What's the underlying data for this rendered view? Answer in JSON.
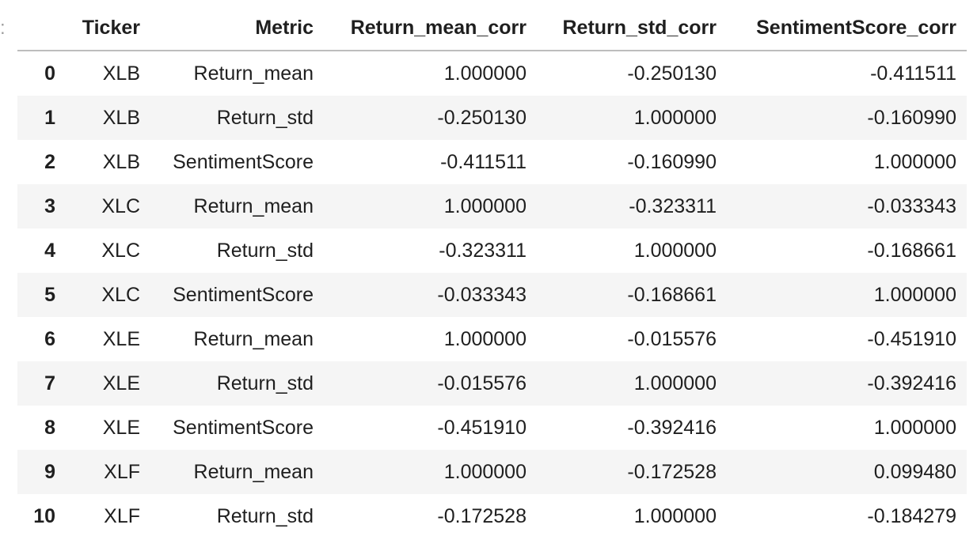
{
  "prompt_marker": ":",
  "columns": [
    "",
    "Ticker",
    "Metric",
    "Return_mean_corr",
    "Return_std_corr",
    "SentimentScore_corr"
  ],
  "rows": [
    {
      "index": "0",
      "ticker": "XLB",
      "metric": "Return_mean",
      "return_mean_corr": "1.000000",
      "return_std_corr": "-0.250130",
      "sentiment_corr": "-0.411511"
    },
    {
      "index": "1",
      "ticker": "XLB",
      "metric": "Return_std",
      "return_mean_corr": "-0.250130",
      "return_std_corr": "1.000000",
      "sentiment_corr": "-0.160990"
    },
    {
      "index": "2",
      "ticker": "XLB",
      "metric": "SentimentScore",
      "return_mean_corr": "-0.411511",
      "return_std_corr": "-0.160990",
      "sentiment_corr": "1.000000"
    },
    {
      "index": "3",
      "ticker": "XLC",
      "metric": "Return_mean",
      "return_mean_corr": "1.000000",
      "return_std_corr": "-0.323311",
      "sentiment_corr": "-0.033343"
    },
    {
      "index": "4",
      "ticker": "XLC",
      "metric": "Return_std",
      "return_mean_corr": "-0.323311",
      "return_std_corr": "1.000000",
      "sentiment_corr": "-0.168661"
    },
    {
      "index": "5",
      "ticker": "XLC",
      "metric": "SentimentScore",
      "return_mean_corr": "-0.033343",
      "return_std_corr": "-0.168661",
      "sentiment_corr": "1.000000"
    },
    {
      "index": "6",
      "ticker": "XLE",
      "metric": "Return_mean",
      "return_mean_corr": "1.000000",
      "return_std_corr": "-0.015576",
      "sentiment_corr": "-0.451910"
    },
    {
      "index": "7",
      "ticker": "XLE",
      "metric": "Return_std",
      "return_mean_corr": "-0.015576",
      "return_std_corr": "1.000000",
      "sentiment_corr": "-0.392416"
    },
    {
      "index": "8",
      "ticker": "XLE",
      "metric": "SentimentScore",
      "return_mean_corr": "-0.451910",
      "return_std_corr": "-0.392416",
      "sentiment_corr": "1.000000"
    },
    {
      "index": "9",
      "ticker": "XLF",
      "metric": "Return_mean",
      "return_mean_corr": "1.000000",
      "return_std_corr": "-0.172528",
      "sentiment_corr": "0.099480"
    },
    {
      "index": "10",
      "ticker": "XLF",
      "metric": "Return_std",
      "return_mean_corr": "-0.172528",
      "return_std_corr": "1.000000",
      "sentiment_corr": "-0.184279"
    }
  ]
}
